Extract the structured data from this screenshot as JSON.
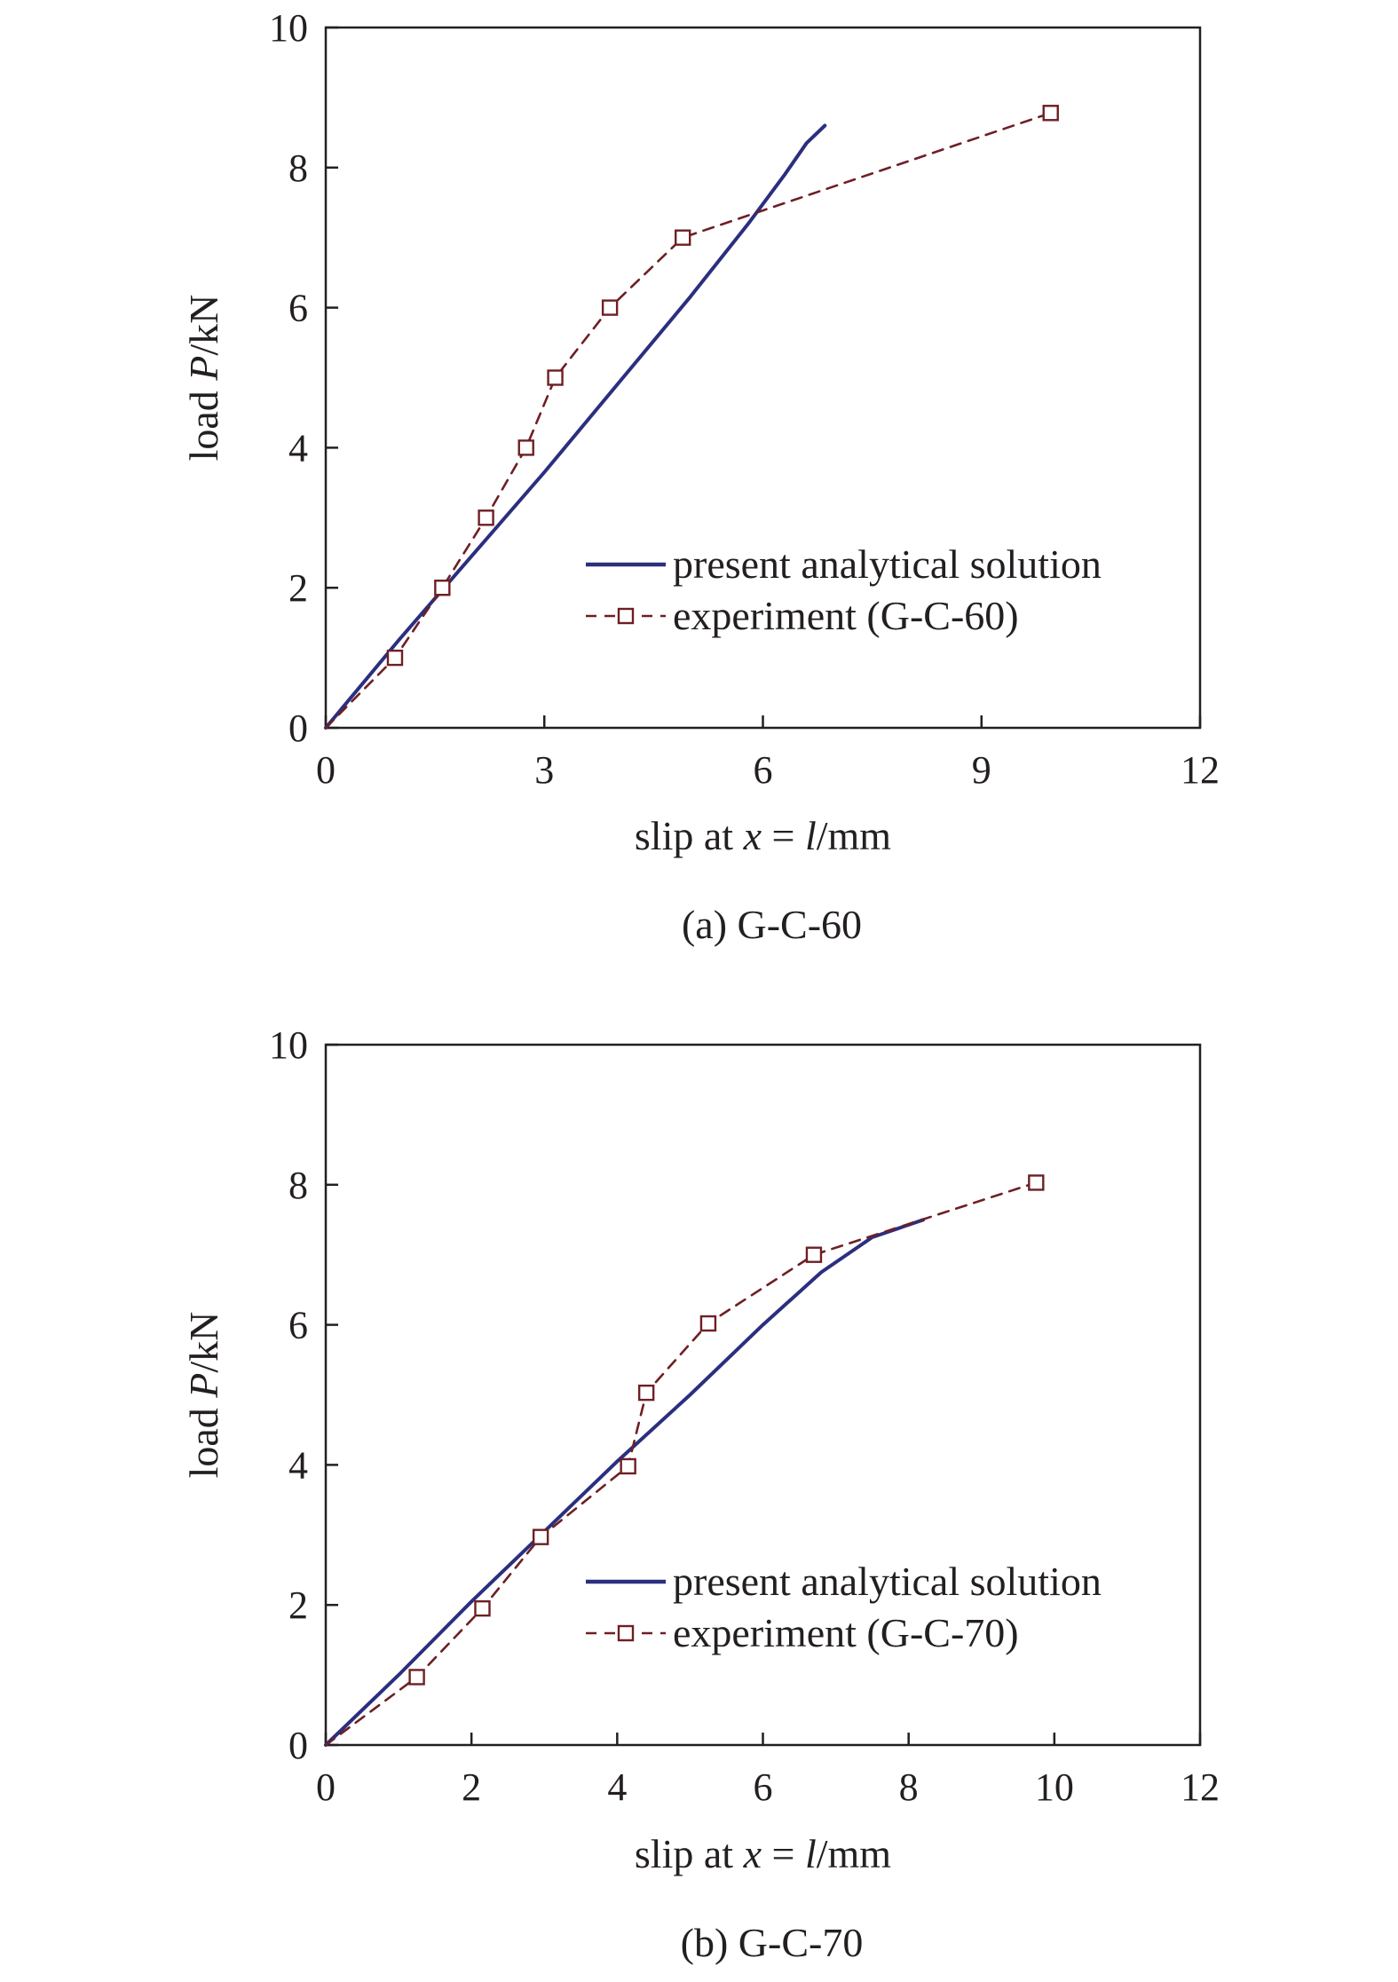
{
  "colors": {
    "analytical": "#2b2f7f",
    "experiment": "#6e1f24",
    "axis": "#231f20",
    "background": "#ffffff"
  },
  "chart_data": [
    {
      "type": "line",
      "caption": "(a) G-C-60",
      "xlabel": {
        "prefix": "slip at ",
        "var1": "x",
        "mid": " = ",
        "var2": "l",
        "suffix": "/mm"
      },
      "ylabel": {
        "prefix": "load ",
        "var": "P",
        "suffix": "/kN"
      },
      "xlim": [
        0,
        12
      ],
      "ylim": [
        0,
        10
      ],
      "xticks": [
        0,
        3,
        6,
        9,
        12
      ],
      "yticks": [
        0,
        2,
        4,
        6,
        8,
        10
      ],
      "grid": false,
      "legend_position": "lower-right",
      "series": [
        {
          "name": "present analytical solution",
          "style": "solid",
          "marker": "none",
          "x": [
            0,
            1.0,
            2.0,
            3.0,
            4.0,
            5.0,
            5.8,
            6.3,
            6.6,
            6.85
          ],
          "y": [
            0,
            1.25,
            2.45,
            3.65,
            4.9,
            6.15,
            7.2,
            7.9,
            8.35,
            8.6
          ]
        },
        {
          "name": "experiment (G-C-60)",
          "style": "dashed",
          "marker": "open-square",
          "x": [
            0,
            0.95,
            1.6,
            2.2,
            2.75,
            3.15,
            3.9,
            4.9,
            9.95
          ],
          "y": [
            0,
            1.0,
            2.0,
            3.0,
            4.0,
            5.0,
            6.0,
            7.0,
            8.78
          ]
        }
      ]
    },
    {
      "type": "line",
      "caption": "(b) G-C-70",
      "xlabel": {
        "prefix": "slip at ",
        "var1": "x",
        "mid": " = ",
        "var2": "l",
        "suffix": "/mm"
      },
      "ylabel": {
        "prefix": "load ",
        "var": "P",
        "suffix": "/kN"
      },
      "xlim": [
        0,
        12
      ],
      "ylim": [
        0,
        10
      ],
      "xticks": [
        0,
        2,
        4,
        6,
        8,
        10,
        12
      ],
      "yticks": [
        0,
        2,
        4,
        6,
        8,
        10
      ],
      "grid": false,
      "legend_position": "lower-right",
      "series": [
        {
          "name": "present analytical solution",
          "style": "solid",
          "marker": "none",
          "x": [
            0,
            1.0,
            2.0,
            3.0,
            4.0,
            5.0,
            6.0,
            6.8,
            7.5,
            8.2
          ],
          "y": [
            0,
            1.0,
            2.05,
            3.05,
            4.05,
            5.0,
            6.0,
            6.75,
            7.25,
            7.5
          ]
        },
        {
          "name": "experiment (G-C-70)",
          "style": "dashed",
          "marker": "open-square",
          "x": [
            0,
            1.25,
            2.15,
            2.95,
            4.15,
            4.4,
            5.25,
            6.7,
            9.75
          ],
          "y": [
            0,
            0.97,
            1.95,
            2.97,
            3.98,
            5.03,
            6.02,
            7.0,
            8.03
          ]
        }
      ]
    }
  ]
}
